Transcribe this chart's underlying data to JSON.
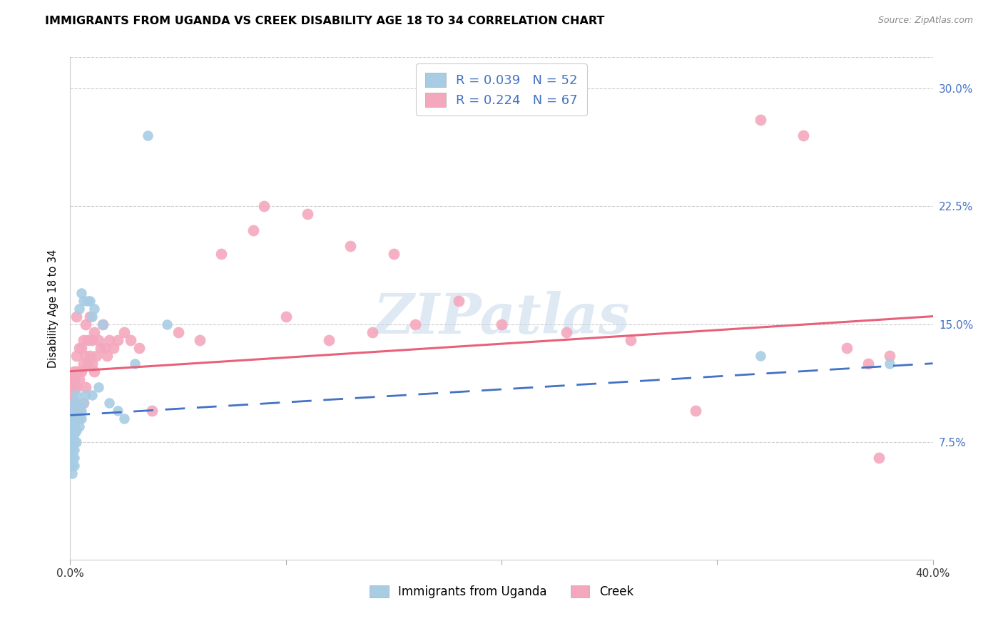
{
  "title": "IMMIGRANTS FROM UGANDA VS CREEK DISABILITY AGE 18 TO 34 CORRELATION CHART",
  "source": "Source: ZipAtlas.com",
  "ylabel": "Disability Age 18 to 34",
  "legend_label1": "Immigrants from Uganda",
  "legend_label2": "Creek",
  "r1": 0.039,
  "n1": 52,
  "r2": 0.224,
  "n2": 67,
  "color_blue": "#a8cce4",
  "color_pink": "#f4a8be",
  "trendline_blue": "#4472c4",
  "trendline_pink": "#e8607a",
  "watermark": "ZIPatlas",
  "xlim": [
    0.0,
    0.4
  ],
  "ylim": [
    0.0,
    0.32
  ],
  "ytick_values": [
    0.075,
    0.15,
    0.225,
    0.3
  ],
  "ytick_labels": [
    "7.5%",
    "15.0%",
    "22.5%",
    "30.0%"
  ],
  "title_fontsize": 11.5,
  "tick_fontsize": 11,
  "source_fontsize": 9,
  "blue_x": [
    0.001,
    0.001,
    0.001,
    0.001,
    0.001,
    0.001,
    0.001,
    0.001,
    0.001,
    0.001,
    0.002,
    0.002,
    0.002,
    0.002,
    0.002,
    0.002,
    0.002,
    0.002,
    0.002,
    0.002,
    0.002,
    0.003,
    0.003,
    0.003,
    0.003,
    0.003,
    0.003,
    0.004,
    0.004,
    0.004,
    0.004,
    0.005,
    0.005,
    0.005,
    0.006,
    0.006,
    0.007,
    0.008,
    0.009,
    0.01,
    0.01,
    0.011,
    0.013,
    0.015,
    0.018,
    0.022,
    0.025,
    0.03,
    0.036,
    0.045,
    0.32,
    0.38
  ],
  "blue_y": [
    0.055,
    0.06,
    0.065,
    0.07,
    0.075,
    0.08,
    0.082,
    0.085,
    0.09,
    0.092,
    0.06,
    0.065,
    0.07,
    0.075,
    0.08,
    0.082,
    0.085,
    0.09,
    0.095,
    0.098,
    0.1,
    0.075,
    0.082,
    0.09,
    0.095,
    0.1,
    0.105,
    0.085,
    0.09,
    0.095,
    0.16,
    0.09,
    0.095,
    0.17,
    0.1,
    0.165,
    0.105,
    0.165,
    0.165,
    0.105,
    0.155,
    0.16,
    0.11,
    0.15,
    0.1,
    0.095,
    0.09,
    0.125,
    0.27,
    0.15,
    0.13,
    0.125
  ],
  "pink_x": [
    0.001,
    0.001,
    0.001,
    0.002,
    0.002,
    0.002,
    0.002,
    0.002,
    0.003,
    0.003,
    0.003,
    0.003,
    0.004,
    0.004,
    0.004,
    0.005,
    0.005,
    0.006,
    0.006,
    0.006,
    0.007,
    0.007,
    0.007,
    0.008,
    0.008,
    0.009,
    0.009,
    0.01,
    0.01,
    0.011,
    0.011,
    0.012,
    0.013,
    0.014,
    0.015,
    0.016,
    0.017,
    0.018,
    0.02,
    0.022,
    0.025,
    0.028,
    0.032,
    0.038,
    0.05,
    0.06,
    0.07,
    0.085,
    0.1,
    0.12,
    0.14,
    0.16,
    0.18,
    0.2,
    0.23,
    0.26,
    0.29,
    0.32,
    0.34,
    0.36,
    0.37,
    0.375,
    0.38,
    0.09,
    0.11,
    0.13,
    0.15
  ],
  "pink_y": [
    0.1,
    0.105,
    0.115,
    0.095,
    0.1,
    0.11,
    0.115,
    0.12,
    0.11,
    0.12,
    0.13,
    0.155,
    0.115,
    0.12,
    0.135,
    0.12,
    0.135,
    0.1,
    0.125,
    0.14,
    0.11,
    0.13,
    0.15,
    0.125,
    0.14,
    0.13,
    0.155,
    0.125,
    0.14,
    0.12,
    0.145,
    0.13,
    0.14,
    0.135,
    0.15,
    0.135,
    0.13,
    0.14,
    0.135,
    0.14,
    0.145,
    0.14,
    0.135,
    0.095,
    0.145,
    0.14,
    0.195,
    0.21,
    0.155,
    0.14,
    0.145,
    0.15,
    0.165,
    0.15,
    0.145,
    0.14,
    0.095,
    0.28,
    0.27,
    0.135,
    0.125,
    0.065,
    0.13,
    0.225,
    0.22,
    0.2,
    0.195
  ],
  "blue_trend_x": [
    0.0,
    0.4
  ],
  "blue_trend_y": [
    0.092,
    0.125
  ],
  "pink_trend_x": [
    0.0,
    0.4
  ],
  "pink_trend_y": [
    0.12,
    0.155
  ]
}
